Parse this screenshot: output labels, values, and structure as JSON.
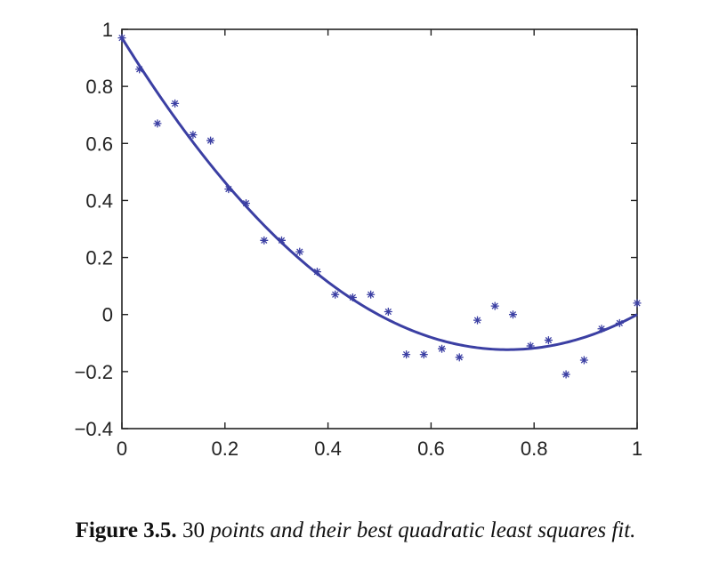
{
  "chart_data": {
    "type": "scatter",
    "xlim": [
      0,
      1
    ],
    "ylim": [
      -0.4,
      1
    ],
    "x_ticks": [
      "0",
      "0.2",
      "0.4",
      "0.6",
      "0.8",
      "1"
    ],
    "y_ticks": [
      "1",
      "0.8",
      "0.6",
      "0.4",
      "0.2",
      "0",
      "−0.2",
      "−0.4"
    ],
    "grid": false,
    "series": [
      {
        "kind": "points",
        "marker": "asterisk",
        "color": "#3b3fa3",
        "x": [
          0.0,
          0.034,
          0.069,
          0.103,
          0.138,
          0.172,
          0.207,
          0.241,
          0.276,
          0.31,
          0.345,
          0.379,
          0.414,
          0.448,
          0.483,
          0.517,
          0.552,
          0.586,
          0.621,
          0.655,
          0.69,
          0.724,
          0.759,
          0.793,
          0.828,
          0.862,
          0.897,
          0.931,
          0.966,
          1.0
        ],
        "y": [
          0.97,
          0.86,
          0.67,
          0.74,
          0.63,
          0.61,
          0.44,
          0.39,
          0.26,
          0.26,
          0.22,
          0.15,
          0.07,
          0.06,
          0.07,
          0.01,
          -0.14,
          -0.14,
          -0.12,
          -0.15,
          -0.02,
          0.03,
          0.0,
          -0.11,
          -0.09,
          -0.21,
          -0.16,
          -0.05,
          -0.03,
          0.04
        ]
      },
      {
        "kind": "curve",
        "color": "#3b3fa3",
        "fit": "quadratic",
        "coefficients": {
          "a": 1.95,
          "b": -2.92,
          "c": 0.97
        }
      }
    ]
  },
  "caption": {
    "label": "Figure 3.5.",
    "number": "30",
    "text": "points and their best quadratic least squares fit."
  }
}
